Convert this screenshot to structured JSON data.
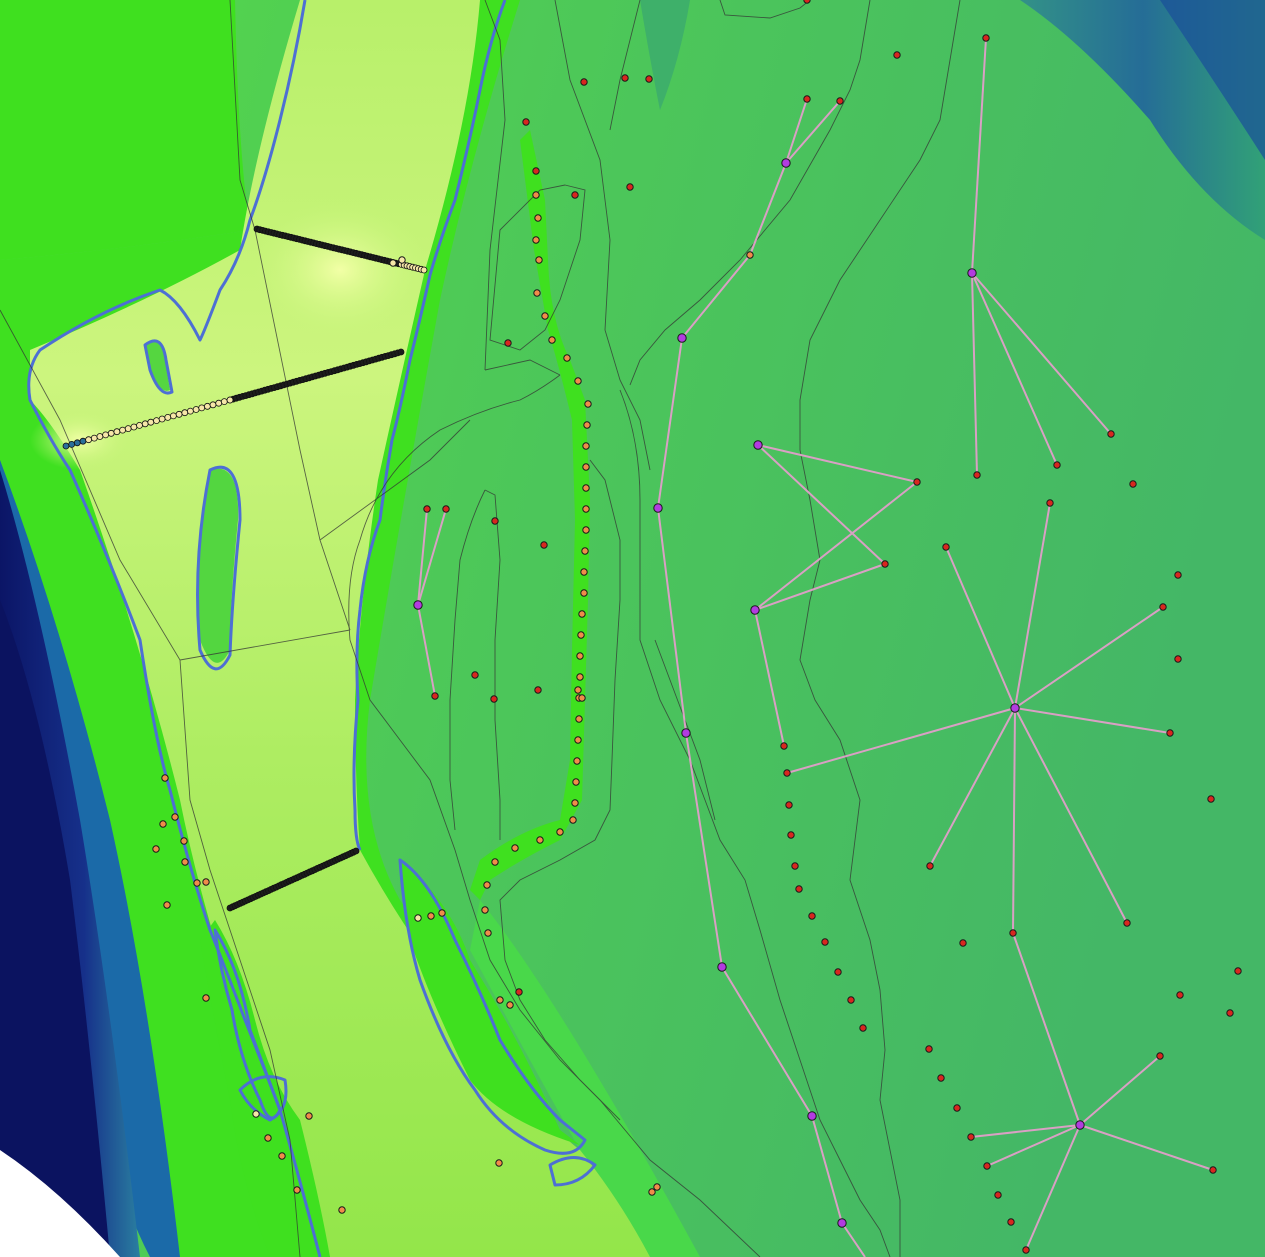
{
  "map": {
    "view": "elevation-raster-with-survey-points",
    "colors": {
      "deep_water": "#0d1a78",
      "channel_blue": "#1e5a9c",
      "teal": "#2a8f8a",
      "floodplain_green": "#45c25c",
      "bright_green": "#3fe21f",
      "high_ground": "#c8f77a",
      "peak_yellow": "#eaff98",
      "contour_blue": "#4d6fd4",
      "boundary_line": "#333333",
      "network_line": "#d9a0c4",
      "node_magenta": "#b23ce0",
      "point_red": "#d8271f",
      "point_orange": "#f08c4a",
      "point_pale": "#f6e7a8",
      "point_dark": "#1c1c1c"
    },
    "layers": [
      "elevation-raster",
      "contour-lines",
      "polygon-boundaries",
      "network-links",
      "transect-points",
      "survey-points",
      "network-nodes"
    ]
  }
}
